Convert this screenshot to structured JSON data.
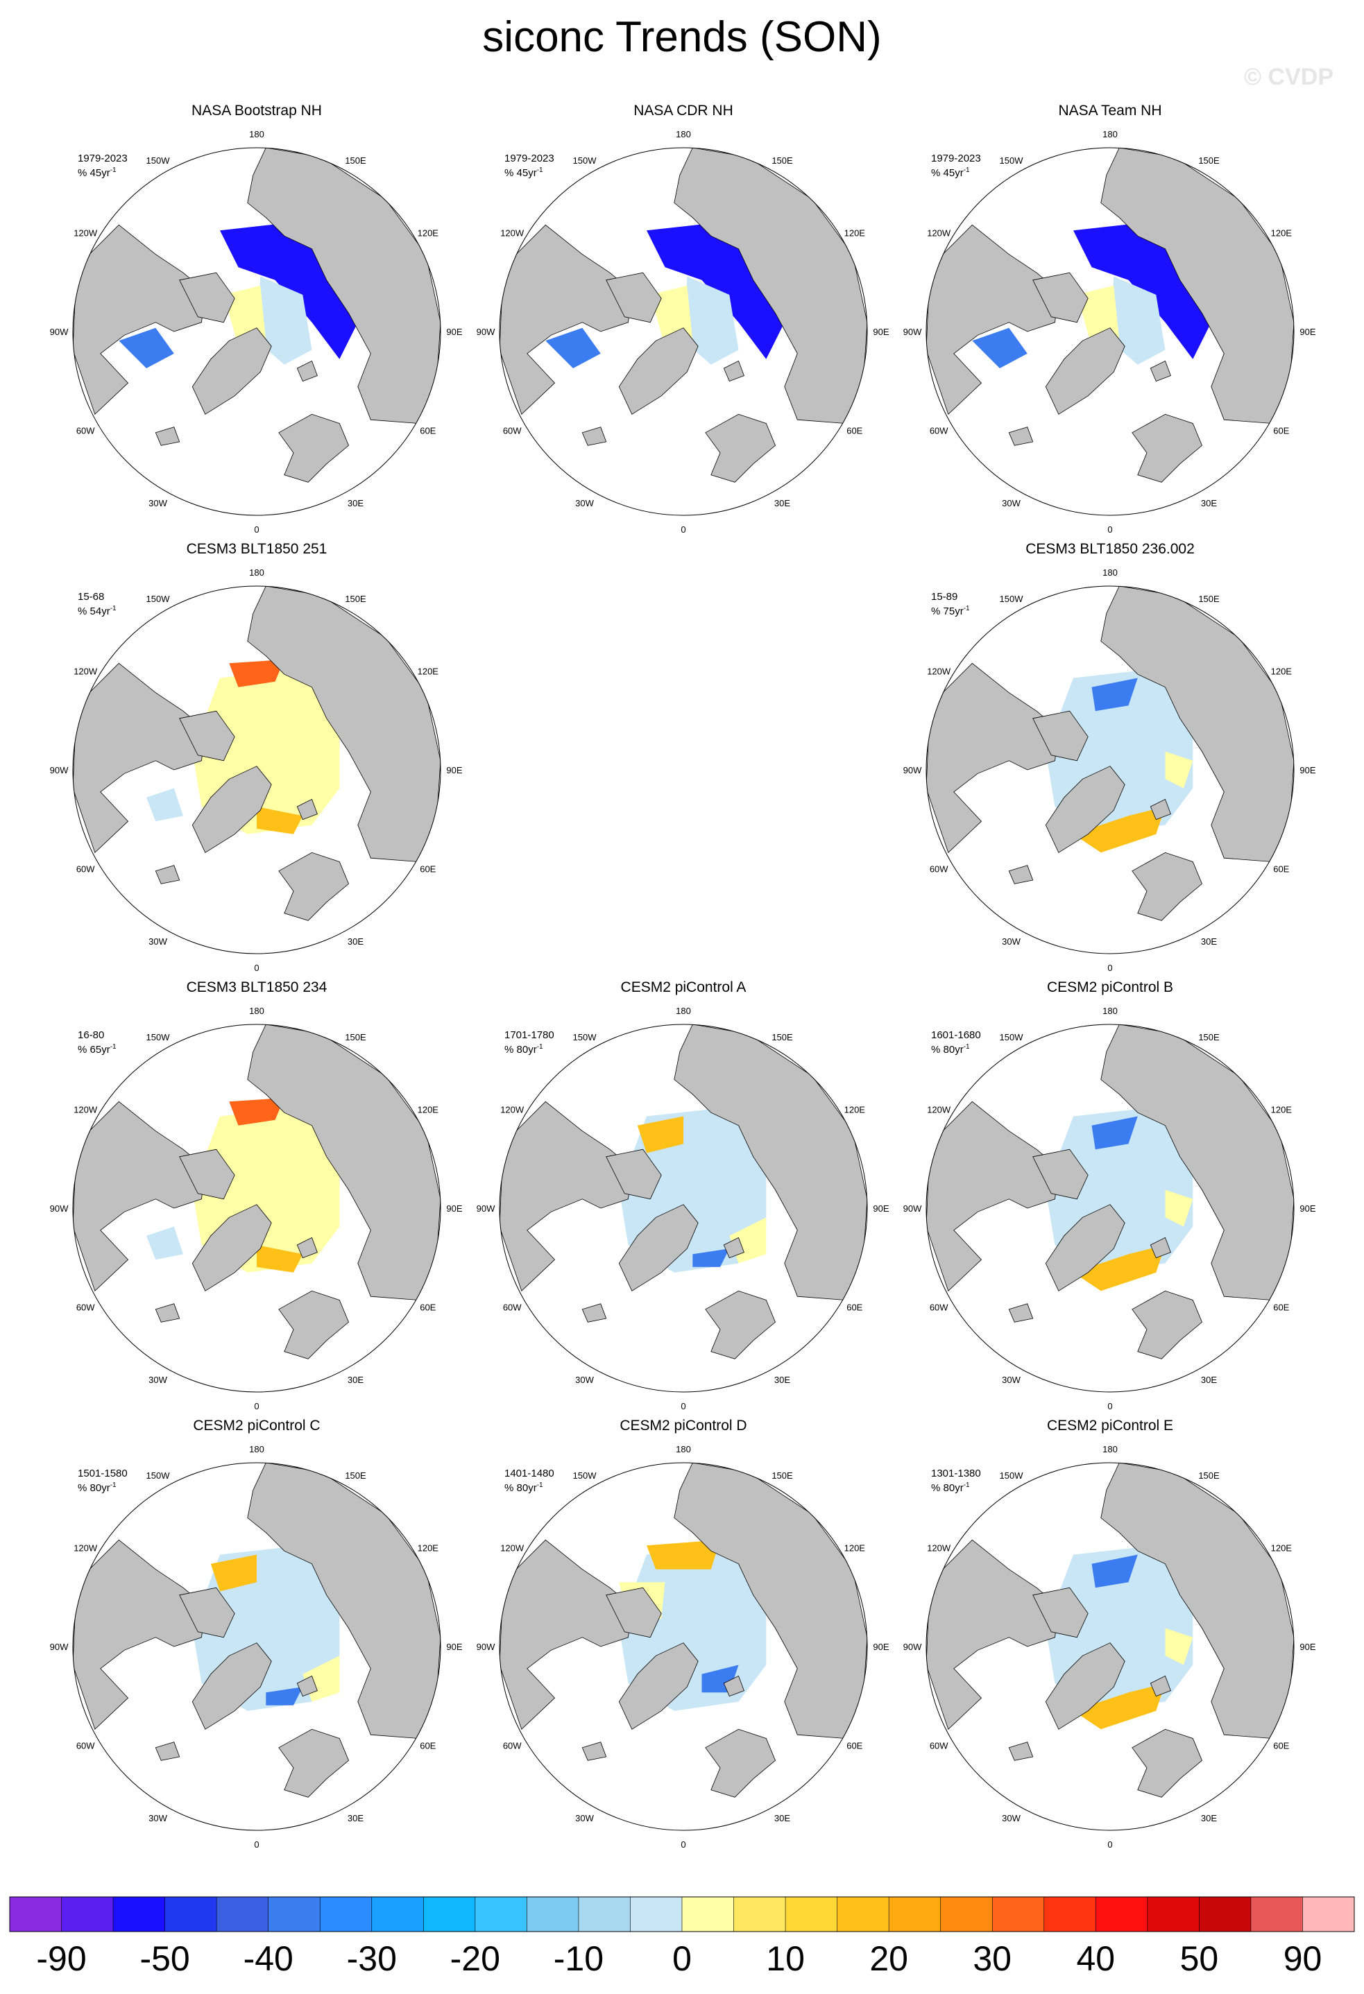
{
  "title": "siconc Trends (SON)",
  "watermark": "© CVDP",
  "longitude_labels": [
    "180",
    "150E",
    "120E",
    "90E",
    "60E",
    "30E",
    "0",
    "30W",
    "60W",
    "90W",
    "120W",
    "150W"
  ],
  "panels": [
    {
      "id": "nasa-bootstrap",
      "title": "NASA Bootstrap NH",
      "period": "1979-2023",
      "trend_unit": "% 45yr",
      "pattern": "obs"
    },
    {
      "id": "nasa-cdr",
      "title": "NASA CDR NH",
      "period": "1979-2023",
      "trend_unit": "% 45yr",
      "pattern": "obs"
    },
    {
      "id": "nasa-team",
      "title": "NASA Team NH",
      "period": "1979-2023",
      "trend_unit": "% 45yr",
      "pattern": "obs"
    },
    {
      "id": "cesm3-251",
      "title": "CESM3 BLT1850 251",
      "period": "15-68",
      "trend_unit": "% 54yr",
      "pattern": "warm"
    },
    null,
    {
      "id": "cesm3-236",
      "title": "CESM3 BLT1850 236.002",
      "period": "15-89",
      "trend_unit": "% 75yr",
      "pattern": "cool_warmband"
    },
    {
      "id": "cesm3-234",
      "title": "CESM3 BLT1850 234",
      "period": "16-80",
      "trend_unit": "% 65yr",
      "pattern": "warm"
    },
    {
      "id": "cesm2-a",
      "title": "CESM2 piControl A",
      "period": "1701-1780",
      "trend_unit": "% 80yr",
      "pattern": "mixed_cool"
    },
    {
      "id": "cesm2-b",
      "title": "CESM2 piControl B",
      "period": "1601-1680",
      "trend_unit": "% 80yr",
      "pattern": "cool_warmband"
    },
    {
      "id": "cesm2-c",
      "title": "CESM2 piControl C",
      "period": "1501-1580",
      "trend_unit": "% 80yr",
      "pattern": "mixed_cool"
    },
    {
      "id": "cesm2-d",
      "title": "CESM2 piControl D",
      "period": "1401-1480",
      "trend_unit": "% 80yr",
      "pattern": "mixed_warm"
    },
    {
      "id": "cesm2-e",
      "title": "CESM2 piControl E",
      "period": "1301-1380",
      "trend_unit": "% 80yr",
      "pattern": "cool_warmband"
    }
  ],
  "colorbar": {
    "colors": [
      "#8a2be2",
      "#5a1ef0",
      "#1a10ff",
      "#2038f0",
      "#3a5fe0",
      "#3b7cf0",
      "#2b8cff",
      "#1aa0ff",
      "#10b8ff",
      "#39c4ff",
      "#7ccbf0",
      "#a8d8f0",
      "#c8e6f6",
      "#ffffa8",
      "#ffe860",
      "#ffd838",
      "#ffc018",
      "#ffa810",
      "#ff8a10",
      "#ff6418",
      "#ff3410",
      "#ff1010",
      "#e00808",
      "#c80808",
      "#e85858",
      "#ffb8b8"
    ],
    "tick_labels": [
      "-90",
      "-50",
      "-40",
      "-30",
      "-20",
      "-10",
      "0",
      "10",
      "20",
      "30",
      "40",
      "50",
      "90"
    ]
  },
  "legend_colors": {
    "land": "#c0c0c0",
    "ocean_no_ice": "#ffffff",
    "strong_decline": "#1a10ff",
    "moderate_decline": "#3b7cf0",
    "weak_decline": "#c8e6f6",
    "weak_increase": "#ffffa8",
    "moderate_increase": "#ffc018",
    "strong_increase": "#ff6418"
  }
}
